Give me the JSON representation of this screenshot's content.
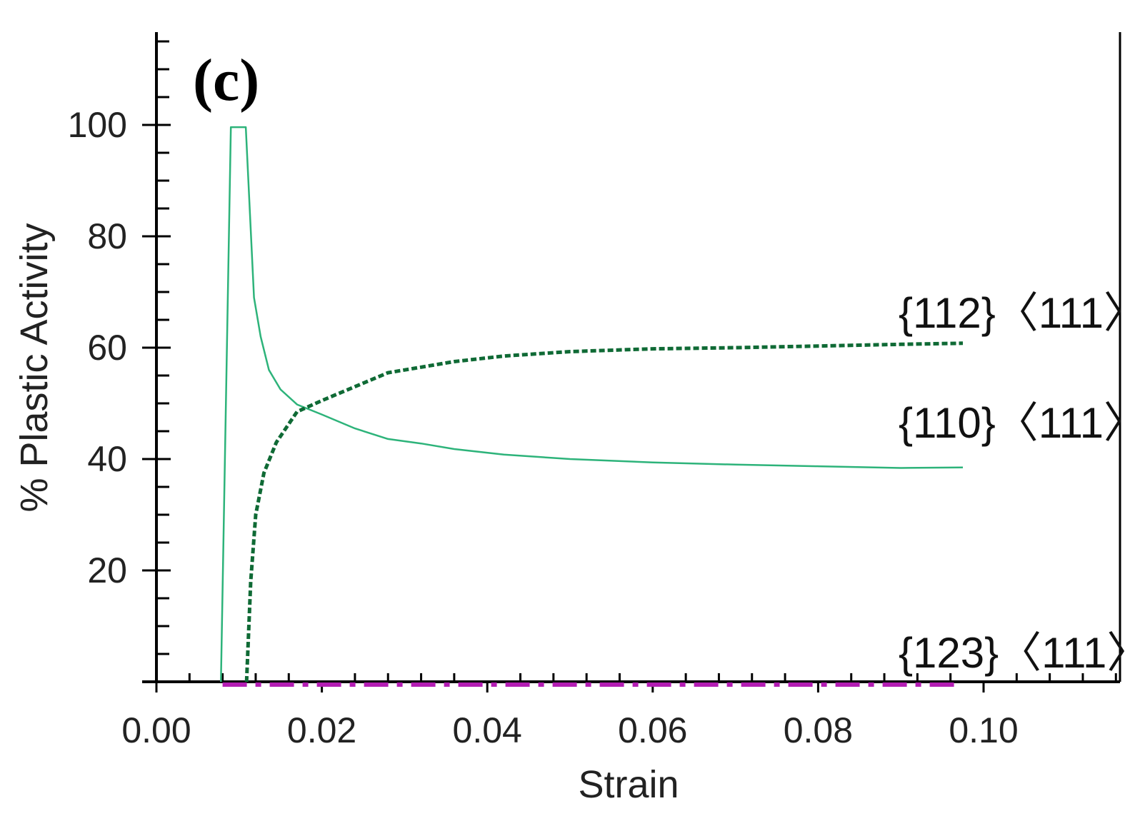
{
  "chart_data": {
    "type": "line",
    "panel_label": "(c)",
    "xlabel": "Strain",
    "ylabel": "% Plastic Activity",
    "xlim": [
      0.0,
      0.117
    ],
    "ylim": [
      0,
      116
    ],
    "x_ticks": [
      0.0,
      0.02,
      0.04,
      0.06,
      0.08,
      0.1
    ],
    "x_tick_labels": [
      "0.00",
      "0.02",
      "0.04",
      "0.06",
      "0.08",
      "0.10"
    ],
    "y_ticks": [
      20,
      40,
      60,
      80,
      100
    ],
    "y_tick_labels": [
      "20",
      "40",
      "60",
      "80",
      "100"
    ],
    "series": [
      {
        "name": "{110}<111>",
        "label": "{110}〈111〉",
        "color": "#2db37a",
        "style": "solid",
        "x": [
          0.0078,
          0.009,
          0.0108,
          0.0118,
          0.0126,
          0.0136,
          0.015,
          0.017,
          0.02,
          0.024,
          0.028,
          0.032,
          0.036,
          0.042,
          0.05,
          0.06,
          0.07,
          0.08,
          0.09,
          0.0975
        ],
        "values": [
          0,
          99.6,
          99.6,
          69,
          62,
          56,
          52.5,
          49.8,
          48,
          45.5,
          43.6,
          42.8,
          41.8,
          40.8,
          40,
          39.4,
          39,
          38.7,
          38.4,
          38.5
        ]
      },
      {
        "name": "{112}<111>",
        "label": "{112}〈111〉",
        "color": "#0f6a35",
        "style": "dotted",
        "x": [
          0.0109,
          0.0114,
          0.012,
          0.013,
          0.0145,
          0.017,
          0.02,
          0.024,
          0.028,
          0.032,
          0.036,
          0.042,
          0.05,
          0.06,
          0.07,
          0.08,
          0.09,
          0.0975
        ],
        "values": [
          0,
          18,
          30,
          37.5,
          43,
          48.5,
          50.5,
          53,
          55.5,
          56.5,
          57.5,
          58.5,
          59.3,
          59.8,
          60,
          60.3,
          60.6,
          60.8
        ]
      },
      {
        "name": "{123}<111>",
        "label": "{123}〈111〉",
        "color": "#b31db3",
        "style": "dashdot",
        "x": [
          0.008,
          0.097
        ],
        "values": [
          0,
          0
        ]
      }
    ]
  }
}
